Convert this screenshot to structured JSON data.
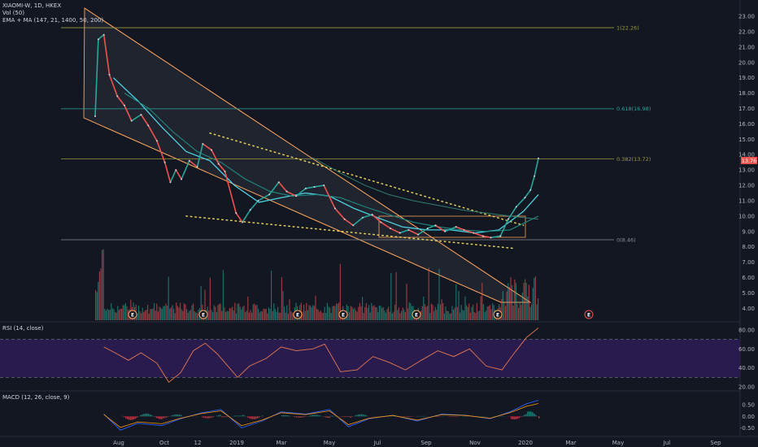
{
  "header": {
    "symbol_line": "XIAOMI-W, 1D, HKEX",
    "vol_line": "Vol (50)",
    "ma_line": "EMA + MA (147, 21, 1400, 50, 200)",
    "rsi_line": "RSI (14, close)",
    "macd_line": "MACD (12, 26, close, 9)"
  },
  "colors": {
    "background": "#131722",
    "up": "#26a69a",
    "down": "#ef5350",
    "channel": "#f7a35c",
    "fib_gold": "#9a9a3a",
    "fib_teal": "#26a69a",
    "rsi_line": "#e5794f",
    "rsi_band": "#2a1b4e",
    "price_tag": "#ef5350"
  },
  "price_axis": {
    "ticks": [
      "23.00",
      "22.00",
      "21.00",
      "20.00",
      "19.00",
      "18.00",
      "17.00",
      "16.00",
      "15.00",
      "14.00",
      "13.00",
      "12.00",
      "11.00",
      "10.00",
      "9.00",
      "8.00",
      "7.00",
      "6.00",
      "5.00",
      "4.00"
    ],
    "ylim": [
      3.7,
      23.4
    ],
    "current_price_label": "13.76"
  },
  "x_axis": {
    "ticks": [
      "Aug",
      "Oct",
      "12",
      "2019",
      "Mar",
      "May",
      "Jul",
      "Sep",
      "Nov",
      "2020",
      "Mar",
      "May",
      "Jul",
      "Sep"
    ]
  },
  "fib_levels": [
    {
      "label": "1(22.26)",
      "value": 22.26
    },
    {
      "label": "0.618(16.98)",
      "value": 16.98
    },
    {
      "label": "0.382(13.72)",
      "value": 13.72
    },
    {
      "label": "0(8.46)",
      "value": 8.46
    }
  ],
  "earnings_markers": [
    "E",
    "E",
    "E",
    "E",
    "E",
    "E",
    "E"
  ],
  "rsi_axis": {
    "ticks": [
      "80.00",
      "60.00",
      "40.00",
      "20.00"
    ],
    "upper": 70,
    "lower": 30
  },
  "macd_axis": {
    "ticks": [
      "0.50",
      "0.00",
      "-0.50"
    ]
  },
  "chart_data": {
    "type": "line",
    "title": "XIAOMI-W, 1D, HKEX",
    "price_series": {
      "name": "XIAOMI-W close",
      "x": [
        "2018-07-09",
        "2018-07-13",
        "2018-07-20",
        "2018-07-27",
        "2018-08-06",
        "2018-08-15",
        "2018-08-24",
        "2018-09-05",
        "2018-09-14",
        "2018-09-25",
        "2018-10-05",
        "2018-10-12",
        "2018-10-19",
        "2018-10-26",
        "2018-11-05",
        "2018-11-15",
        "2018-11-22",
        "2018-12-03",
        "2018-12-12",
        "2018-12-20",
        "2019-01-03",
        "2019-01-11",
        "2019-01-21",
        "2019-01-31",
        "2019-02-14",
        "2019-02-26",
        "2019-03-08",
        "2019-03-20",
        "2019-04-01",
        "2019-04-12",
        "2019-04-24",
        "2019-05-08",
        "2019-05-20",
        "2019-05-31",
        "2019-06-12",
        "2019-06-24",
        "2019-07-05",
        "2019-07-17",
        "2019-07-29",
        "2019-08-09",
        "2019-08-21",
        "2019-09-02",
        "2019-09-12",
        "2019-09-24",
        "2019-10-08",
        "2019-10-18",
        "2019-10-30",
        "2019-11-11",
        "2019-11-21",
        "2019-12-03",
        "2019-12-13",
        "2019-12-23",
        "2020-01-03",
        "2020-01-10",
        "2020-01-15",
        "2020-01-20"
      ],
      "y": [
        16.5,
        21.5,
        21.8,
        19.2,
        17.8,
        17.2,
        16.2,
        16.6,
        15.9,
        14.9,
        13.5,
        12.2,
        13.0,
        12.4,
        13.6,
        13.2,
        14.7,
        14.3,
        13.4,
        12.9,
        10.2,
        9.6,
        10.4,
        11.0,
        11.4,
        12.2,
        11.6,
        11.3,
        11.8,
        11.9,
        12.0,
        10.5,
        9.8,
        9.4,
        9.9,
        10.1,
        9.6,
        9.2,
        8.9,
        9.1,
        8.8,
        9.2,
        9.4,
        9.0,
        9.3,
        9.1,
        8.9,
        8.7,
        8.6,
        8.7,
        9.8,
        10.6,
        11.2,
        11.7,
        12.6,
        13.76
      ]
    },
    "ma_series": [
      {
        "x": [
          "2018-08-01",
          "2018-09-01",
          "2018-10-01",
          "2018-11-01",
          "2018-12-01",
          "2019-01-01",
          "2019-02-01",
          "2019-03-01",
          "2019-04-01",
          "2019-05-01",
          "2019-06-01",
          "2019-07-01",
          "2019-08-01",
          "2019-09-01",
          "2019-10-01",
          "2019-11-01",
          "2019-12-01",
          "2020-01-01",
          "2020-01-20"
        ],
        "y": [
          19.0,
          17.5,
          15.8,
          14.2,
          13.6,
          12.0,
          10.9,
          11.2,
          11.5,
          11.3,
          10.5,
          9.9,
          9.3,
          9.1,
          9.1,
          8.9,
          9.1,
          10.3,
          11.4
        ]
      },
      {
        "x": [
          "2018-08-15",
          "2018-09-15",
          "2018-10-15",
          "2018-11-15",
          "2018-12-15",
          "2019-01-15",
          "2019-02-15",
          "2019-03-15",
          "2019-04-15",
          "2019-05-15",
          "2019-06-15",
          "2019-07-15",
          "2019-08-15",
          "2019-09-15",
          "2019-10-15",
          "2019-11-15",
          "2019-12-15",
          "2020-01-20"
        ],
        "y": [
          18.0,
          17.0,
          15.5,
          14.2,
          13.5,
          12.4,
          11.6,
          11.3,
          11.4,
          11.2,
          10.6,
          10.1,
          9.6,
          9.3,
          9.1,
          9.0,
          9.1,
          10.0
        ]
      },
      {
        "x": [
          "2019-04-10",
          "2019-05-15",
          "2019-06-15",
          "2019-07-15",
          "2019-08-15",
          "2019-09-15",
          "2019-10-15",
          "2019-11-15",
          "2019-12-15",
          "2020-01-20"
        ],
        "y": [
          13.8,
          12.8,
          12.0,
          11.4,
          11.0,
          10.7,
          10.4,
          10.2,
          10.0,
          9.8
        ]
      }
    ],
    "trendline_upper_dotted": {
      "x": [
        "2018-12-01",
        "2020-01-01"
      ],
      "y": [
        15.4,
        9.4
      ]
    },
    "trendline_lower_dotted": {
      "x": [
        "2018-11-01",
        "2019-12-20"
      ],
      "y": [
        10.0,
        7.9
      ]
    },
    "rsi_series": {
      "x": [
        "2018-07-20",
        "2018-08-05",
        "2018-08-20",
        "2018-09-05",
        "2018-09-25",
        "2018-10-10",
        "2018-10-25",
        "2018-11-10",
        "2018-11-25",
        "2018-12-10",
        "2019-01-05",
        "2019-01-20",
        "2019-02-10",
        "2019-03-01",
        "2019-03-20",
        "2019-04-10",
        "2019-04-25",
        "2019-05-15",
        "2019-06-05",
        "2019-06-25",
        "2019-07-15",
        "2019-08-05",
        "2019-08-25",
        "2019-09-15",
        "2019-10-05",
        "2019-10-25",
        "2019-11-15",
        "2019-12-05",
        "2019-12-20",
        "2020-01-05",
        "2020-01-20"
      ],
      "y": [
        62,
        55,
        48,
        56,
        45,
        25,
        35,
        58,
        66,
        55,
        30,
        42,
        50,
        62,
        58,
        60,
        65,
        36,
        38,
        52,
        46,
        38,
        48,
        58,
        52,
        60,
        42,
        38,
        55,
        72,
        82
      ]
    },
    "macd_series": {
      "x": [
        "2018-07-20",
        "2018-08-10",
        "2018-09-01",
        "2018-10-01",
        "2018-10-25",
        "2018-11-20",
        "2018-12-15",
        "2019-01-10",
        "2019-02-05",
        "2019-03-01",
        "2019-04-01",
        "2019-05-01",
        "2019-05-25",
        "2019-06-20",
        "2019-07-20",
        "2019-08-20",
        "2019-09-20",
        "2019-10-20",
        "2019-11-20",
        "2019-12-15",
        "2020-01-05",
        "2020-01-20"
      ],
      "y": [
        0.1,
        -0.6,
        -0.3,
        -0.4,
        -0.1,
        0.15,
        0.3,
        -0.5,
        -0.2,
        0.2,
        0.1,
        0.3,
        -0.45,
        -0.1,
        0.05,
        -0.2,
        0.1,
        0.05,
        -0.1,
        0.2,
        0.55,
        0.7
      ]
    },
    "volume_note": "Vol (50)",
    "ylim": [
      3.7,
      23.4
    ]
  }
}
